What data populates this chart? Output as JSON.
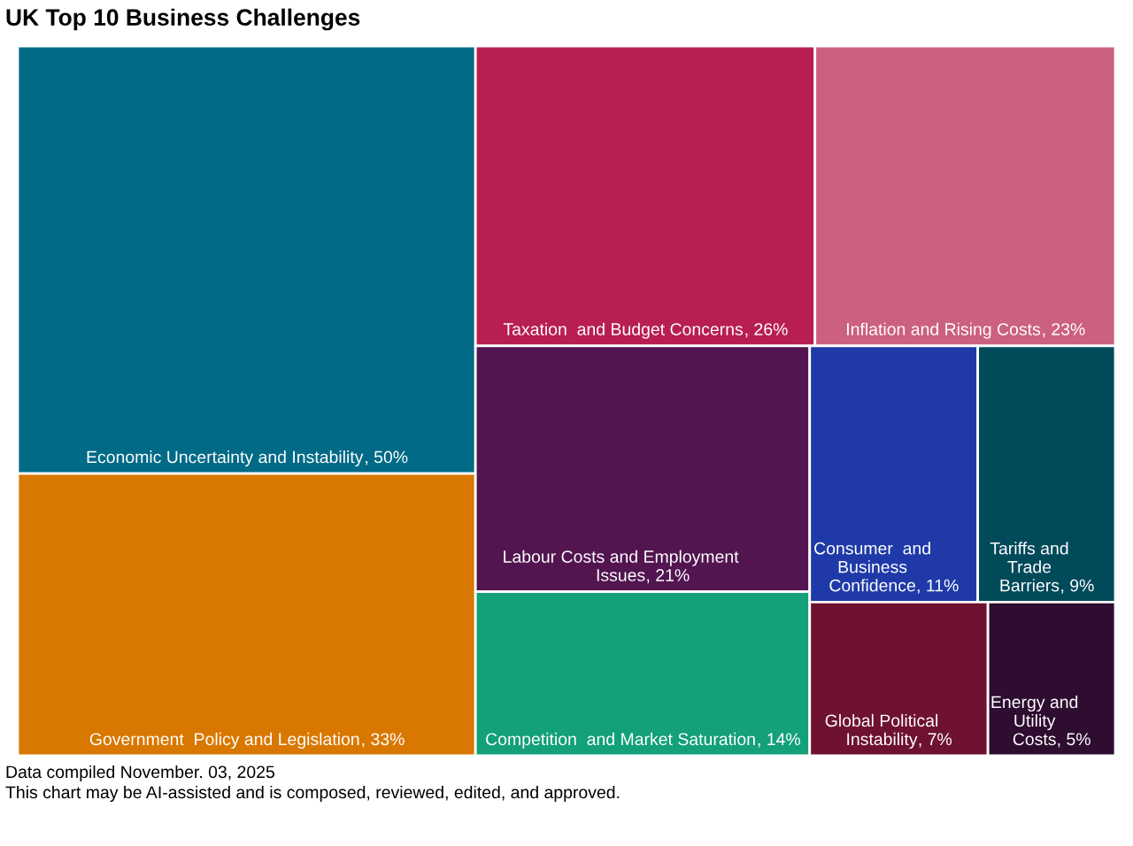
{
  "chart_data": {
    "type": "other",
    "title": "UK Top 10 Business Challenges",
    "categories": [
      "Economic Uncertainty and Instability",
      "Government  Policy and Legislation",
      "Taxation  and Budget Concerns",
      "Inflation and Rising Costs",
      "Labour Costs and Employment Issues",
      "Competition  and Market Saturation",
      "Consumer  and Business Confidence",
      "Tariffs and Trade Barriers",
      "Global Political Instability",
      "Energy and Utility Costs"
    ],
    "values": [
      50,
      33,
      26,
      23,
      21,
      14,
      11,
      9,
      7,
      5
    ],
    "value_labels": [
      ", 50%",
      ", 33%",
      ", 26%",
      ", 23%",
      ", 21%",
      ", 14%",
      ", 11%",
      ", 9%",
      ", 7%",
      ", 5%"
    ],
    "colors": [
      "#006a87",
      "#d97800",
      "#b81f50",
      "#cc6080",
      "#521550",
      "#13a07a",
      "#1f3aa8",
      "#004a5a",
      "#6e1230",
      "#2e0d30"
    ],
    "annotations": [
      "Data compiled November. 03, 2025",
      "This chart may be AI-assisted and is composed, reviewed, edited, and approved."
    ]
  }
}
